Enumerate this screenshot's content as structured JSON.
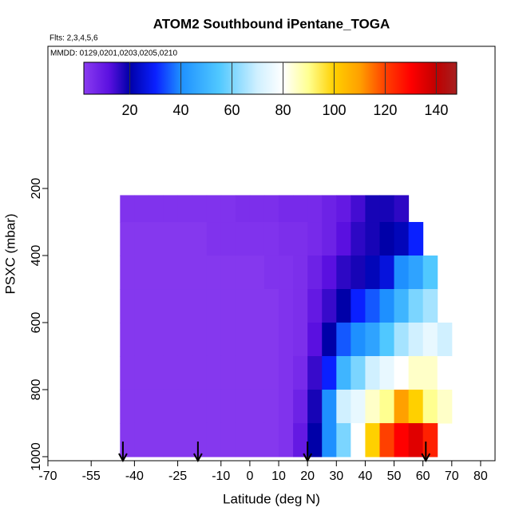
{
  "chart_data": {
    "type": "heatmap",
    "title": "ATOM2 Southbound iPentane_TOGA",
    "subtitle": "Flts: 2,3,4,5,6",
    "annotation": "MMDD: 0129,0201,0203,0205,0210",
    "x_label": "Latitude (deg N)",
    "y_label": "PSXC (mbar)",
    "xlim": [
      -70,
      85
    ],
    "xticks": [
      -70,
      -55,
      -40,
      -25,
      -10,
      0,
      10,
      20,
      30,
      40,
      50,
      60,
      70,
      80
    ],
    "ylim": [
      1012,
      -224
    ],
    "yticks": [
      200,
      400,
      600,
      800,
      1000
    ],
    "x_bins": [
      -45,
      -40,
      -35,
      -30,
      -25,
      -20,
      -15,
      -10,
      -5,
      0,
      5,
      10,
      15,
      20,
      25,
      30,
      35,
      40,
      45,
      50,
      55,
      60,
      65,
      70
    ],
    "y_bins": [
      220,
      300,
      400,
      500,
      600,
      700,
      800,
      900,
      1000
    ],
    "values": [
      [
        4,
        4,
        4,
        4,
        4,
        4,
        4,
        4,
        5,
        5,
        5,
        6,
        6,
        6,
        8,
        10,
        14,
        18,
        18,
        16,
        null,
        null,
        null
      ],
      [
        3,
        3,
        3,
        3,
        3,
        3,
        4,
        4,
        4,
        4,
        4,
        5,
        5,
        6,
        8,
        12,
        16,
        18,
        20,
        22,
        30,
        null,
        null
      ],
      [
        3,
        3,
        3,
        3,
        3,
        3,
        3,
        3,
        3,
        3,
        4,
        4,
        5,
        8,
        12,
        16,
        18,
        22,
        26,
        40,
        45,
        55,
        null
      ],
      [
        3,
        3,
        3,
        3,
        3,
        3,
        3,
        3,
        3,
        3,
        3,
        4,
        5,
        10,
        15,
        20,
        30,
        35,
        40,
        50,
        60,
        65,
        null
      ],
      [
        3,
        3,
        3,
        3,
        3,
        3,
        3,
        3,
        3,
        3,
        3,
        4,
        5,
        12,
        20,
        35,
        40,
        45,
        55,
        65,
        70,
        75,
        70
      ],
      [
        3,
        3,
        3,
        3,
        3,
        3,
        3,
        3,
        3,
        3,
        3,
        4,
        6,
        15,
        30,
        50,
        60,
        70,
        75,
        80,
        85,
        85,
        80
      ],
      [
        3,
        3,
        3,
        3,
        3,
        3,
        3,
        3,
        3,
        3,
        3,
        4,
        8,
        18,
        40,
        70,
        75,
        85,
        90,
        110,
        100,
        90,
        85
      ],
      [
        3,
        3,
        3,
        3,
        3,
        3,
        3,
        3,
        3,
        3,
        3,
        4,
        10,
        20,
        40,
        60,
        80,
        100,
        120,
        130,
        135,
        125,
        null
      ]
    ],
    "colorbar_range": [
      2,
      148
    ],
    "colorbar_ticks": [
      20,
      40,
      60,
      80,
      100,
      120,
      140
    ],
    "colorscale": [
      [
        2,
        "#8a3cf0"
      ],
      [
        12,
        "#5a10e0"
      ],
      [
        20,
        "#0000a8"
      ],
      [
        30,
        "#0a20ff"
      ],
      [
        40,
        "#1e90ff"
      ],
      [
        55,
        "#50c8ff"
      ],
      [
        70,
        "#d0f0ff"
      ],
      [
        80,
        "#ffffff"
      ],
      [
        90,
        "#ffff90"
      ],
      [
        100,
        "#ffd000"
      ],
      [
        110,
        "#ffa000"
      ],
      [
        120,
        "#ff4000"
      ],
      [
        130,
        "#ff0000"
      ],
      [
        140,
        "#c00000"
      ],
      [
        148,
        "#a52020"
      ]
    ],
    "arrows": [
      -44,
      -18,
      20,
      61
    ]
  }
}
